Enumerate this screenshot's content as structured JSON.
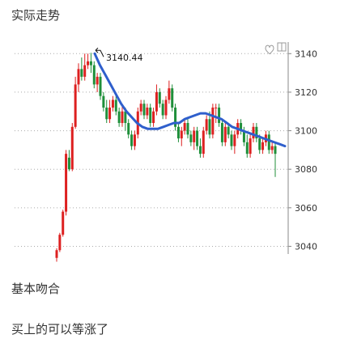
{
  "header": {
    "title": "实际走势"
  },
  "notes": {
    "line1": "基本吻合",
    "line2": "买上的可以等涨了"
  },
  "colors": {
    "up": "#dd2020",
    "down": "#1f8f3a",
    "ma": "#2f5fcc",
    "grid": "#aaaaaa"
  },
  "toolbar_icons": [
    "heart-icon",
    "window-icon"
  ],
  "chart_data": {
    "type": "candlestick",
    "title": "",
    "xlabel": "",
    "ylabel": "",
    "ylim": [
      3036,
      3146
    ],
    "yticks": [
      3140,
      3120,
      3100,
      3080,
      3060,
      3040
    ],
    "grid": true,
    "annotation": {
      "text": "3140.44",
      "value": 3140.44
    },
    "candles": [
      [
        3034,
        3038,
        3032,
        3039
      ],
      [
        3038,
        3046,
        3037,
        3047
      ],
      [
        3046,
        3058,
        3045,
        3059
      ],
      [
        3058,
        3088,
        3056,
        3090
      ],
      [
        3086,
        3080,
        3079,
        3090
      ],
      [
        3080,
        3102,
        3079,
        3104
      ],
      [
        3102,
        3124,
        3101,
        3128
      ],
      [
        3124,
        3132,
        3120,
        3135
      ],
      [
        3132,
        3128,
        3126,
        3138
      ],
      [
        3128,
        3134,
        3126,
        3140
      ],
      [
        3134,
        3136,
        3132,
        3140
      ],
      [
        3136,
        3134,
        3130,
        3140.44
      ],
      [
        3134,
        3124,
        3122,
        3136
      ],
      [
        3124,
        3128,
        3120,
        3130
      ],
      [
        3128,
        3118,
        3116,
        3130
      ],
      [
        3118,
        3112,
        3110,
        3120
      ],
      [
        3112,
        3106,
        3104,
        3116
      ],
      [
        3106,
        3112,
        3104,
        3116
      ],
      [
        3112,
        3116,
        3110,
        3118
      ],
      [
        3116,
        3110,
        3108,
        3118
      ],
      [
        3110,
        3104,
        3102,
        3112
      ],
      [
        3104,
        3110,
        3102,
        3114
      ],
      [
        3110,
        3104,
        3100,
        3112
      ],
      [
        3104,
        3098,
        3096,
        3106
      ],
      [
        3098,
        3092,
        3090,
        3100
      ],
      [
        3092,
        3098,
        3090,
        3100
      ],
      [
        3098,
        3110,
        3096,
        3112
      ],
      [
        3110,
        3114,
        3108,
        3116
      ],
      [
        3114,
        3108,
        3106,
        3116
      ],
      [
        3108,
        3112,
        3106,
        3114
      ],
      [
        3112,
        3104,
        3102,
        3114
      ],
      [
        3104,
        3110,
        3102,
        3112
      ],
      [
        3110,
        3120,
        3108,
        3124
      ],
      [
        3120,
        3114,
        3112,
        3122
      ],
      [
        3114,
        3108,
        3106,
        3116
      ],
      [
        3108,
        3116,
        3106,
        3118
      ],
      [
        3116,
        3122,
        3114,
        3126
      ],
      [
        3122,
        3112,
        3110,
        3124
      ],
      [
        3112,
        3102,
        3100,
        3114
      ],
      [
        3102,
        3096,
        3094,
        3104
      ],
      [
        3096,
        3100,
        3092,
        3102
      ],
      [
        3100,
        3104,
        3098,
        3106
      ],
      [
        3104,
        3098,
        3096,
        3106
      ],
      [
        3098,
        3094,
        3092,
        3100
      ],
      [
        3094,
        3100,
        3090,
        3102
      ],
      [
        3100,
        3092,
        3090,
        3102
      ],
      [
        3092,
        3088,
        3086,
        3096
      ],
      [
        3088,
        3100,
        3086,
        3102
      ],
      [
        3100,
        3106,
        3098,
        3108
      ],
      [
        3106,
        3098,
        3096,
        3110
      ],
      [
        3098,
        3112,
        3096,
        3114
      ],
      [
        3112,
        3112,
        3104,
        3114
      ],
      [
        3112,
        3104,
        3102,
        3114
      ],
      [
        3104,
        3094,
        3092,
        3106
      ],
      [
        3094,
        3102,
        3092,
        3104
      ],
      [
        3102,
        3098,
        3096,
        3104
      ],
      [
        3098,
        3092,
        3090,
        3100
      ],
      [
        3092,
        3098,
        3088,
        3100
      ],
      [
        3098,
        3104,
        3096,
        3106
      ],
      [
        3104,
        3100,
        3098,
        3106
      ],
      [
        3100,
        3094,
        3092,
        3102
      ],
      [
        3094,
        3088,
        3086,
        3098
      ],
      [
        3088,
        3096,
        3086,
        3098
      ],
      [
        3096,
        3102,
        3094,
        3104
      ],
      [
        3102,
        3096,
        3094,
        3104
      ],
      [
        3096,
        3090,
        3088,
        3098
      ],
      [
        3090,
        3094,
        3088,
        3096
      ],
      [
        3094,
        3098,
        3092,
        3100
      ],
      [
        3098,
        3090,
        3088,
        3100
      ],
      [
        3090,
        3092,
        3088,
        3094
      ],
      [
        3092,
        3088,
        3076,
        3094
      ]
    ],
    "ma": [
      3140,
      3134,
      3129,
      3124,
      3119,
      3114,
      3110,
      3107,
      3104,
      3102,
      3101,
      3101,
      3101,
      3102,
      3103,
      3104,
      3104,
      3106,
      3107,
      3108,
      3109,
      3109,
      3108,
      3107,
      3106,
      3104,
      3102,
      3101,
      3100,
      3099,
      3098,
      3097,
      3096,
      3095,
      3094,
      3093,
      3092
    ]
  }
}
